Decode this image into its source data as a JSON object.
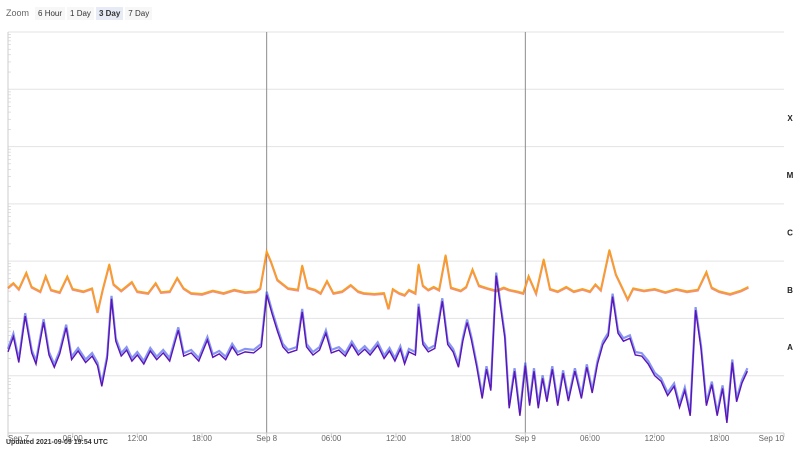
{
  "zoom": {
    "label": "Zoom",
    "buttons": [
      {
        "label": "6 Hour",
        "active": false
      },
      {
        "label": "1 Day",
        "active": false
      },
      {
        "label": "3 Day",
        "active": true
      },
      {
        "label": "7 Day",
        "active": false
      }
    ]
  },
  "updated_text": "Updated 2021-09-09 19:54 UTC",
  "chart_data": {
    "type": "line",
    "title": "",
    "xlabel": "",
    "ylabel": "",
    "x_range": [
      "2021-09-07 00:00",
      "2021-09-10 00:00"
    ],
    "x_ticks": [
      {
        "t": 0,
        "label": "Sep 7"
      },
      {
        "t": 6,
        "label": "06:00"
      },
      {
        "t": 12,
        "label": "12:00"
      },
      {
        "t": 18,
        "label": "18:00"
      },
      {
        "t": 24,
        "label": "Sep 8"
      },
      {
        "t": 30,
        "label": "06:00"
      },
      {
        "t": 36,
        "label": "12:00"
      },
      {
        "t": 42,
        "label": "18:00"
      },
      {
        "t": 48,
        "label": "Sep 9"
      },
      {
        "t": 54,
        "label": "06:00"
      },
      {
        "t": 60,
        "label": "12:00"
      },
      {
        "t": 66,
        "label": "18:00"
      },
      {
        "t": 72,
        "label": "Sep 10"
      }
    ],
    "day_boundaries": [
      24,
      48
    ],
    "y_scale": "log",
    "y_range": [
      1e-09,
      0.01
    ],
    "flare_classes": [
      {
        "label": "A",
        "flux": 3.16e-08
      },
      {
        "label": "B",
        "flux": 3.16e-07
      },
      {
        "label": "C",
        "flux": 3.16e-06
      },
      {
        "label": "M",
        "flux": 3.16e-05
      },
      {
        "label": "X",
        "flux": 0.000316
      }
    ],
    "series": [
      {
        "color": "#f7a11a",
        "alt_color": "#e8331a",
        "points": [
          [
            0,
            3.5e-07
          ],
          [
            0.5,
            4.2e-07
          ],
          [
            1,
            3.3e-07
          ],
          [
            1.7,
            6.4e-07
          ],
          [
            2.2,
            3.6e-07
          ],
          [
            3,
            3e-07
          ],
          [
            3.5,
            5.6e-07
          ],
          [
            4,
            3.2e-07
          ],
          [
            4.8,
            2.9e-07
          ],
          [
            5.5,
            5.5e-07
          ],
          [
            6,
            3.3e-07
          ],
          [
            7,
            3e-07
          ],
          [
            7.8,
            3.4e-07
          ],
          [
            8.3,
            1.3e-07
          ],
          [
            8.8,
            3.3e-07
          ],
          [
            9.4,
            9e-07
          ],
          [
            9.8,
            4e-07
          ],
          [
            10.5,
            3.1e-07
          ],
          [
            11.5,
            4.4e-07
          ],
          [
            12,
            3e-07
          ],
          [
            13,
            2.8e-07
          ],
          [
            13.7,
            4.2e-07
          ],
          [
            14.2,
            2.9e-07
          ],
          [
            15,
            3e-07
          ],
          [
            15.7,
            5.2e-07
          ],
          [
            16.3,
            3.4e-07
          ],
          [
            17,
            2.8e-07
          ],
          [
            18,
            2.7e-07
          ],
          [
            19,
            3.1e-07
          ],
          [
            20,
            2.8e-07
          ],
          [
            21,
            3.2e-07
          ],
          [
            22,
            2.9e-07
          ],
          [
            23,
            3e-07
          ],
          [
            23.4,
            3.4e-07
          ],
          [
            24,
            1.5e-06
          ],
          [
            24.4,
            1e-06
          ],
          [
            25,
            4.8e-07
          ],
          [
            26,
            3.4e-07
          ],
          [
            26.9,
            3.2e-07
          ],
          [
            27.3,
            8.6e-07
          ],
          [
            27.8,
            3.5e-07
          ],
          [
            28.5,
            3.2e-07
          ],
          [
            29,
            2.8e-07
          ],
          [
            29.6,
            4.6e-07
          ],
          [
            30.2,
            2.8e-07
          ],
          [
            31,
            3e-07
          ],
          [
            31.8,
            3.9e-07
          ],
          [
            32.5,
            3e-07
          ],
          [
            33,
            2.8e-07
          ],
          [
            34,
            2.7e-07
          ],
          [
            34.9,
            2.8e-07
          ],
          [
            35.3,
            1.5e-07
          ],
          [
            35.7,
            3.3e-07
          ],
          [
            36.3,
            2.8e-07
          ],
          [
            36.8,
            2.6e-07
          ],
          [
            37.2,
            3.2e-07
          ],
          [
            37.8,
            2.8e-07
          ],
          [
            38.1,
            9e-07
          ],
          [
            38.5,
            3.8e-07
          ],
          [
            39,
            3.2e-07
          ],
          [
            39.5,
            3.6e-07
          ],
          [
            40,
            3.2e-07
          ],
          [
            40.6,
            1.3e-06
          ],
          [
            41.1,
            3.5e-07
          ],
          [
            42,
            3.1e-07
          ],
          [
            42.5,
            3.6e-07
          ],
          [
            43.1,
            7.3e-07
          ],
          [
            43.7,
            3.8e-07
          ],
          [
            44.5,
            3.4e-07
          ],
          [
            45.3,
            3.1e-07
          ],
          [
            46,
            3.5e-07
          ],
          [
            46.5,
            3.2e-07
          ],
          [
            47.2,
            3e-07
          ],
          [
            47.8,
            2.8e-07
          ],
          [
            48.3,
            5.6e-07
          ],
          [
            49,
            2.8e-07
          ],
          [
            49.7,
            1.1e-06
          ],
          [
            50.3,
            3.3e-07
          ],
          [
            51,
            3e-07
          ],
          [
            51.8,
            3.6e-07
          ],
          [
            52.5,
            3e-07
          ],
          [
            53.3,
            3.3e-07
          ],
          [
            54,
            3e-07
          ],
          [
            54.5,
            4e-07
          ],
          [
            55,
            3.2e-07
          ],
          [
            55.8,
            1.6e-06
          ],
          [
            56.4,
            6e-07
          ],
          [
            57,
            3.5e-07
          ],
          [
            57.5,
            2.2e-07
          ],
          [
            58,
            3.4e-07
          ],
          [
            59,
            3.1e-07
          ],
          [
            60,
            3.3e-07
          ],
          [
            61,
            2.9e-07
          ],
          [
            62,
            3.3e-07
          ],
          [
            63,
            3e-07
          ],
          [
            64,
            3.2e-07
          ],
          [
            64.8,
            6.6e-07
          ],
          [
            65.3,
            3.5e-07
          ],
          [
            66,
            3e-07
          ],
          [
            67,
            2.7e-07
          ],
          [
            68,
            3.1e-07
          ],
          [
            68.7,
            3.6e-07
          ]
        ]
      },
      {
        "color": "#5b14b6",
        "alt_color": "#2740e8",
        "points": [
          [
            0,
            2.6e-08
          ],
          [
            0.5,
            4.8e-08
          ],
          [
            1,
            1.7e-08
          ],
          [
            1.6,
            1.1e-07
          ],
          [
            2.2,
            2.5e-08
          ],
          [
            2.6,
            1.6e-08
          ],
          [
            3.3,
            8.6e-08
          ],
          [
            3.8,
            2.3e-08
          ],
          [
            4.3,
            1.4e-08
          ],
          [
            4.8,
            2.4e-08
          ],
          [
            5.4,
            6.9e-08
          ],
          [
            5.9,
            1.9e-08
          ],
          [
            6.5,
            2.7e-08
          ],
          [
            7.2,
            1.7e-08
          ],
          [
            7.8,
            2.2e-08
          ],
          [
            8.3,
            1.5e-08
          ],
          [
            8.7,
            6.5e-09
          ],
          [
            9.2,
            2e-08
          ],
          [
            9.6,
            2.2e-07
          ],
          [
            10,
            4e-08
          ],
          [
            10.5,
            2.2e-08
          ],
          [
            11,
            2.8e-08
          ],
          [
            11.5,
            1.8e-08
          ],
          [
            12,
            2.3e-08
          ],
          [
            12.6,
            1.6e-08
          ],
          [
            13.2,
            2.7e-08
          ],
          [
            13.8,
            1.9e-08
          ],
          [
            14.4,
            2.5e-08
          ],
          [
            15,
            1.8e-08
          ],
          [
            15.8,
            6.2e-08
          ],
          [
            16.3,
            2.2e-08
          ],
          [
            17,
            2.5e-08
          ],
          [
            17.7,
            1.8e-08
          ],
          [
            18.5,
            4.2e-08
          ],
          [
            19,
            2.1e-08
          ],
          [
            19.6,
            2.4e-08
          ],
          [
            20.2,
            1.9e-08
          ],
          [
            20.8,
            3.2e-08
          ],
          [
            21.3,
            2.3e-08
          ],
          [
            22,
            2.6e-08
          ],
          [
            22.8,
            2.5e-08
          ],
          [
            23.5,
            3.2e-08
          ],
          [
            24,
            2.6e-07
          ],
          [
            24.5,
            1.2e-07
          ],
          [
            25,
            6e-08
          ],
          [
            25.5,
            3.2e-08
          ],
          [
            26,
            2.5e-08
          ],
          [
            26.8,
            2.8e-08
          ],
          [
            27.3,
            1.3e-07
          ],
          [
            27.7,
            3.2e-08
          ],
          [
            28.3,
            2.3e-08
          ],
          [
            28.9,
            2.8e-08
          ],
          [
            29.5,
            5.5e-08
          ],
          [
            30,
            2.5e-08
          ],
          [
            30.7,
            2.8e-08
          ],
          [
            31.3,
            2.2e-08
          ],
          [
            31.9,
            3.5e-08
          ],
          [
            32.5,
            2.3e-08
          ],
          [
            33.1,
            2.9e-08
          ],
          [
            33.6,
            2.3e-08
          ],
          [
            34.3,
            3.4e-08
          ],
          [
            34.9,
            2e-08
          ],
          [
            35.4,
            2.7e-08
          ],
          [
            35.9,
            1.8e-08
          ],
          [
            36.4,
            2.9e-08
          ],
          [
            36.8,
            1.6e-08
          ],
          [
            37.2,
            2.6e-08
          ],
          [
            37.8,
            2.3e-08
          ],
          [
            38.1,
            1.6e-07
          ],
          [
            38.5,
            3.5e-08
          ],
          [
            39,
            2.6e-08
          ],
          [
            39.6,
            3e-08
          ],
          [
            40.3,
            2e-07
          ],
          [
            40.8,
            3.5e-08
          ],
          [
            41.3,
            2.6e-08
          ],
          [
            41.8,
            1.4e-08
          ],
          [
            42.2,
            4e-08
          ],
          [
            42.6,
            8.5e-08
          ],
          [
            43,
            4.2e-08
          ],
          [
            43.5,
            1.4e-08
          ],
          [
            44,
            4e-09
          ],
          [
            44.4,
            1.3e-08
          ],
          [
            44.8,
            5.5e-09
          ],
          [
            45.3,
            5.6e-07
          ],
          [
            45.7,
            1.6e-07
          ],
          [
            46.1,
            4.5e-08
          ],
          [
            46.5,
            2.7e-09
          ],
          [
            47,
            1.2e-08
          ],
          [
            47.5,
            2e-09
          ],
          [
            48,
            1.5e-08
          ],
          [
            48.4,
            3e-09
          ],
          [
            48.8,
            1.2e-08
          ],
          [
            49.2,
            2.7e-09
          ],
          [
            49.6,
            9e-09
          ],
          [
            50,
            3.5e-09
          ],
          [
            50.5,
            1.3e-08
          ],
          [
            51,
            3e-09
          ],
          [
            51.5,
            1.1e-08
          ],
          [
            52,
            3.6e-09
          ],
          [
            52.6,
            1.2e-08
          ],
          [
            53.2,
            4e-09
          ],
          [
            53.7,
            1.4e-08
          ],
          [
            54.2,
            5e-09
          ],
          [
            54.7,
            1.6e-08
          ],
          [
            55.2,
            3.5e-08
          ],
          [
            55.7,
            5e-08
          ],
          [
            56.1,
            2.4e-07
          ],
          [
            56.6,
            5.5e-08
          ],
          [
            57.1,
            4e-08
          ],
          [
            57.7,
            4.5e-08
          ],
          [
            58.2,
            2.3e-08
          ],
          [
            58.8,
            2.2e-08
          ],
          [
            59.4,
            1.6e-08
          ],
          [
            60,
            1e-08
          ],
          [
            60.6,
            8e-09
          ],
          [
            61.2,
            4.5e-09
          ],
          [
            61.8,
            6.5e-09
          ],
          [
            62.3,
            2.8e-09
          ],
          [
            62.8,
            5.5e-09
          ],
          [
            63.3,
            2e-09
          ],
          [
            63.8,
            1.4e-07
          ],
          [
            64.3,
            3e-08
          ],
          [
            64.8,
            3e-09
          ],
          [
            65.3,
            7e-09
          ],
          [
            65.8,
            2e-09
          ],
          [
            66.3,
            6e-09
          ],
          [
            66.7,
            1.5e-09
          ],
          [
            67.2,
            1.7e-08
          ],
          [
            67.6,
            3.5e-09
          ],
          [
            68.1,
            7.5e-09
          ],
          [
            68.6,
            1.2e-08
          ]
        ]
      }
    ]
  }
}
